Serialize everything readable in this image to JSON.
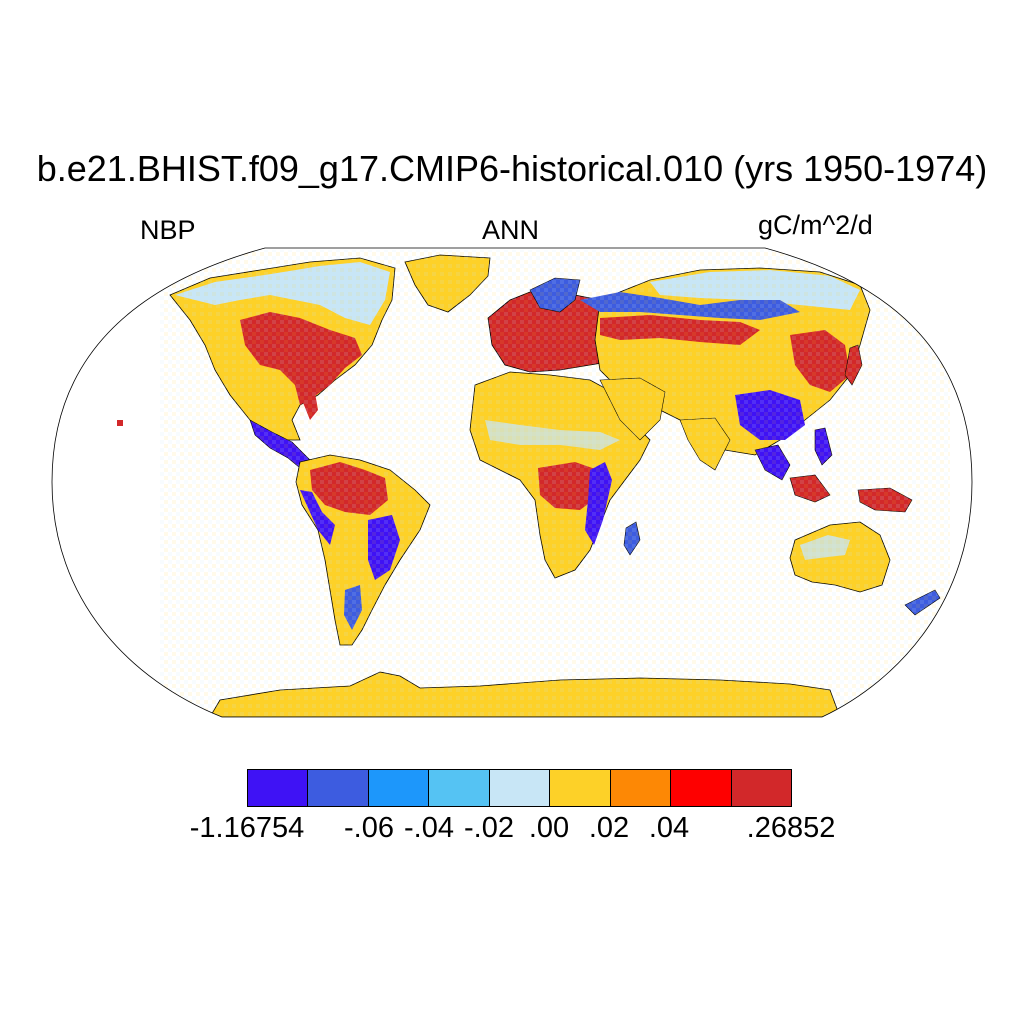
{
  "title": "b.e21.BHIST.f09_g17.CMIP6-historical.010 (yrs 1950-1974)",
  "left_label": "NBP",
  "center_label": "ANN",
  "right_label": "gC/m^2/d",
  "colorbar": {
    "colors": [
      "#3f12f5",
      "#3d5ce0",
      "#1d97fb",
      "#55c3f3",
      "#c8e6f6",
      "#fdd128",
      "#fd8805",
      "#fe0000",
      "#d2282a"
    ],
    "tick_labels": [
      "-1.16754",
      "-.06",
      "-.04",
      "-.02",
      ".00",
      ".02",
      ".04",
      ".26852"
    ]
  },
  "map": {
    "projection": "Robinson",
    "ocean_color": "#ffffff",
    "coastline_color": "#000000"
  }
}
